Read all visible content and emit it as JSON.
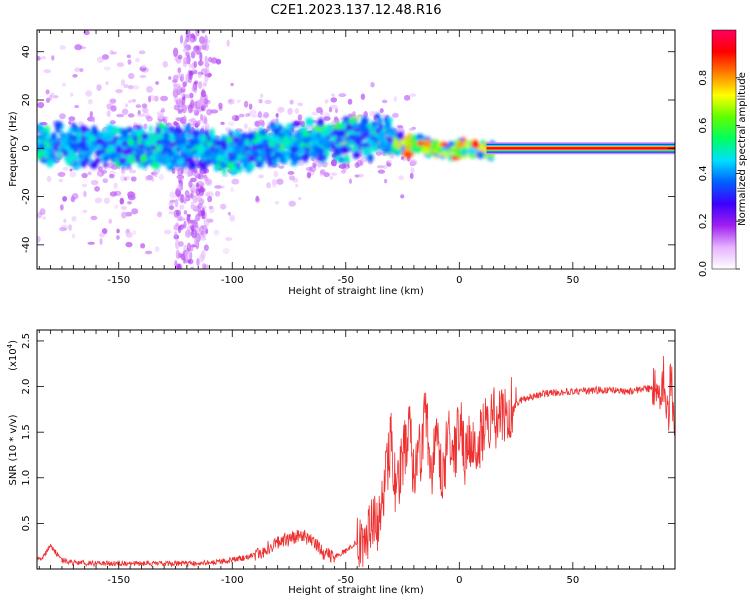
{
  "title": "C2E1.2023.137.12.48.R16",
  "chart_data": [
    {
      "type": "heatmap",
      "xlabel": "Height of straight line (km)",
      "ylabel": "Frequency (Hz)",
      "xlim": [
        -186,
        95
      ],
      "ylim": [
        -50,
        49
      ],
      "xticks": [
        -150,
        -100,
        -50,
        0,
        50
      ],
      "yticks": [
        -40,
        -20,
        0,
        20,
        40
      ],
      "colorbar": {
        "label": "Normalized spectral amplitude",
        "ticks": [
          "0.0",
          "0.2",
          "0.4",
          "0.6",
          "0.8"
        ],
        "range": [
          0,
          1
        ],
        "colormap": [
          "#ffffff",
          "#e6b3ff",
          "#a020f0",
          "#3c00ff",
          "#0060ff",
          "#00e0ff",
          "#00ff60",
          "#60ff00",
          "#ffff00",
          "#ff8000",
          "#ff0000",
          "#ff0060"
        ]
      },
      "ridge": {
        "x": [
          -186,
          -150,
          -120,
          -100,
          -80,
          -60,
          -45,
          -35,
          -25,
          -15,
          -5,
          5,
          12,
          20,
          40,
          60,
          80,
          95
        ],
        "y": [
          1,
          1,
          0,
          -2,
          1,
          3,
          4,
          5,
          2,
          1,
          -1,
          0,
          -1,
          0,
          0,
          0,
          0,
          0
        ],
        "amplitude": [
          0.3,
          0.3,
          0.3,
          0.3,
          0.35,
          0.45,
          0.5,
          0.55,
          0.7,
          0.8,
          0.85,
          0.9,
          0.9,
          0.95,
          0.95,
          0.95,
          0.95,
          0.9
        ]
      }
    },
    {
      "type": "line",
      "xlabel": "Height of straight line (km)",
      "ylabel": "SNR (10 * v/v)",
      "yscale_label": "(x10",
      "yscale_exp": "4",
      "yscale_close": ")",
      "xlim": [
        -186,
        95
      ],
      "ylim": [
        0,
        2.62
      ],
      "xticks": [
        -150,
        -100,
        -50,
        0,
        50
      ],
      "yticks": [
        0.5,
        1.0,
        1.5,
        2.0,
        2.5
      ],
      "color": "#ee3030",
      "series": [
        {
          "x": [
            -186,
            -183,
            -180,
            -175,
            -170,
            -160,
            -150,
            -140,
            -130,
            -120,
            -110,
            -100,
            -95,
            -90,
            -85,
            -80,
            -75,
            -70,
            -65,
            -60,
            -55,
            -50,
            -45,
            -40,
            -35,
            -32,
            -30,
            -28,
            -25,
            -22,
            -20,
            -17,
            -15,
            -12,
            -10,
            -7,
            -5,
            -2,
            0,
            3,
            5,
            8,
            10,
            13,
            15,
            18,
            20,
            25,
            30,
            40,
            50,
            60,
            70,
            75,
            80,
            85,
            88,
            90,
            92,
            93,
            95
          ],
          "y": [
            0.1,
            0.15,
            0.25,
            0.1,
            0.07,
            0.06,
            0.06,
            0.06,
            0.06,
            0.06,
            0.07,
            0.1,
            0.12,
            0.16,
            0.22,
            0.28,
            0.33,
            0.38,
            0.3,
            0.18,
            0.13,
            0.2,
            0.3,
            0.35,
            0.6,
            1.0,
            1.45,
            0.9,
            1.2,
            1.6,
            1.0,
            1.3,
            1.7,
            1.1,
            1.4,
            1.0,
            1.5,
            1.2,
            1.6,
            1.2,
            1.45,
            1.3,
            1.5,
            1.55,
            1.65,
            1.7,
            1.75,
            1.82,
            1.88,
            1.93,
            1.95,
            1.96,
            1.96,
            1.95,
            1.97,
            1.98,
            1.9,
            2.1,
            1.6,
            2.2,
            1.5
          ]
        }
      ]
    }
  ]
}
